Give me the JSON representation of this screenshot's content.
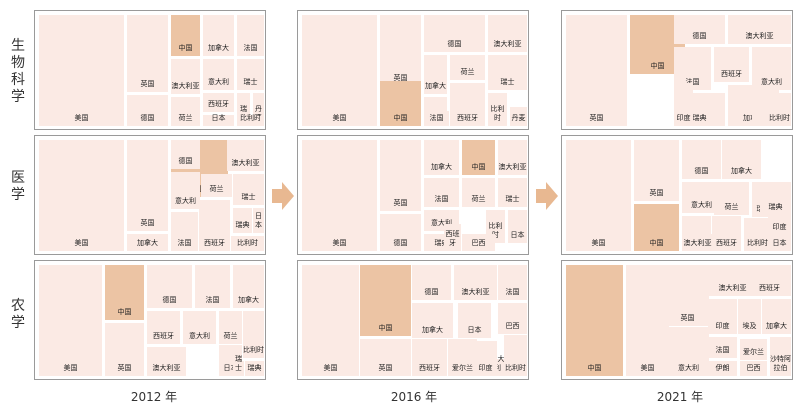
{
  "rows": [
    "生物科学",
    "医学",
    "农学"
  ],
  "years": [
    "2012 年",
    "2016 年",
    "2021 年"
  ],
  "colors": {
    "cell": "#fbeae4",
    "highlight": "#ecc4a4",
    "arrow": "#e8b891",
    "border": "#9a9a9a"
  },
  "treemaps": [
    [
      [
        "美国",
        "英国",
        "中国",
        "加拿大",
        "法国",
        "德国",
        "澳大利亚",
        "意大利",
        "瑞士",
        "西班牙",
        "瑞典",
        "丹麦",
        "荷兰",
        "日本",
        "比利时"
      ],
      [
        "美国",
        "英国",
        "德国",
        "澳大利亚",
        "荷兰",
        "加拿大",
        "瑞士",
        "意大利",
        "日本",
        "瑞典",
        "中国",
        "法国",
        "西班牙",
        "比利时",
        "丹麦"
      ],
      [
        "中国",
        "英国",
        "德国",
        "澳大利亚",
        "法国",
        "西班牙",
        "意大利",
        "加拿大",
        "瑞典",
        "荷兰",
        "印度",
        "日本",
        "比利时"
      ]
    ],
    [
      [
        "中国",
        "美国",
        "英国",
        "德国",
        "澳大利亚",
        "加拿大",
        "意大利",
        "荷兰",
        "瑞士",
        "瑞典",
        "法国",
        "西班牙",
        "比利时",
        "日本"
      ],
      [
        "美国",
        "英国",
        "加拿大",
        "中国",
        "澳大利亚",
        "法国",
        "瑞士",
        "德国",
        "荷兰",
        "比利时",
        "意大利",
        "瑞典",
        "日本",
        "巴西",
        "西班牙"
      ],
      [
        "美国",
        "中国",
        "英国",
        "德国",
        "加拿大",
        "意大利",
        "法国",
        "荷兰",
        "瑞士",
        "瑞典",
        "澳大利亚",
        "西班牙",
        "比利时",
        "印度",
        "日本"
      ]
    ],
    [
      [
        "中国",
        "美国",
        "英国",
        "德国",
        "法国",
        "加拿大",
        "西班牙",
        "意大利",
        "荷兰",
        "日本",
        "印度",
        "比利时",
        "澳大利亚",
        "瑞士",
        "瑞典"
      ],
      [
        "美国",
        "中国",
        "英国",
        "德国",
        "澳大利亚",
        "法国",
        "加拿大",
        "西班牙",
        "日本",
        "巴西",
        "瑞士",
        "意大利",
        "荷兰",
        "爱尔兰",
        "印度",
        "比利时"
      ],
      [
        "中国",
        "美国",
        "英国",
        "澳大利亚",
        "西班牙",
        "德国",
        "印度",
        "埃及",
        "加拿大",
        "法国",
        "沙特阿拉伯",
        "意大利",
        "伊朗",
        "爱尔兰",
        "巴西"
      ]
    ]
  ]
}
